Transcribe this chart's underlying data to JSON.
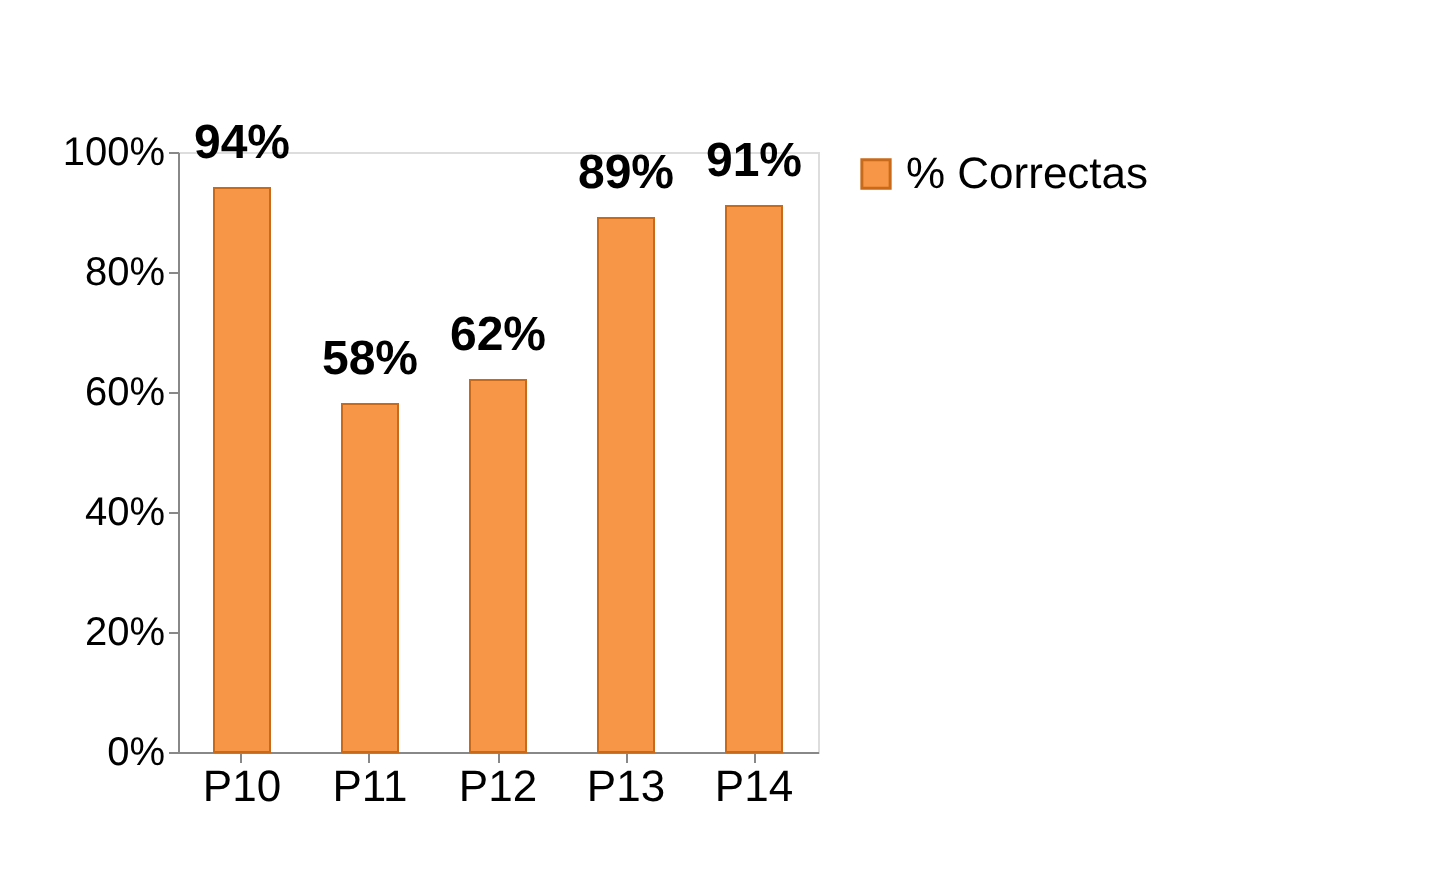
{
  "chart_data": {
    "type": "bar",
    "categories": [
      "P10",
      "P11",
      "P12",
      "P13",
      "P14"
    ],
    "series": [
      {
        "name": "% Correctas",
        "color": "#f79646",
        "values": [
          94,
          58,
          62,
          89,
          91
        ],
        "value_labels": [
          "94%",
          "58%",
          "62%",
          "89%",
          "91%"
        ]
      }
    ],
    "ylim": [
      0,
      100
    ],
    "yticks": [
      {
        "value": 0,
        "label": "0%"
      },
      {
        "value": 20,
        "label": "20%"
      },
      {
        "value": 40,
        "label": "40%"
      },
      {
        "value": 60,
        "label": "60%"
      },
      {
        "value": 80,
        "label": "80%"
      },
      {
        "value": 100,
        "label": "100%"
      }
    ],
    "grid": false,
    "legend": "right"
  }
}
